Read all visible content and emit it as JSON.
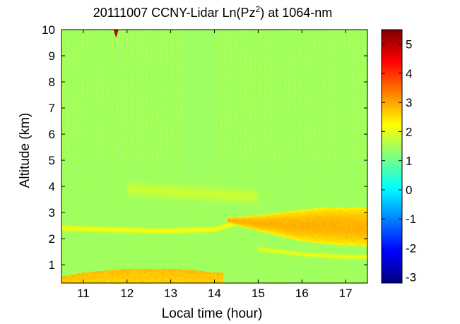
{
  "chart_data": {
    "type": "heatmap",
    "title": {
      "prefix": "20111007 CCNY-Lidar Ln(Pz",
      "superscript": "2",
      "suffix": ") at 1064-nm"
    },
    "xlabel": "Local time (hour)",
    "ylabel": "Altitude (km)",
    "xlim": [
      10.5,
      17.5
    ],
    "ylim": [
      0.3,
      10
    ],
    "x_ticks": [
      "11",
      "12",
      "13",
      "14",
      "15",
      "16",
      "17"
    ],
    "x_tick_values": [
      11,
      12,
      13,
      14,
      15,
      16,
      17
    ],
    "y_ticks": [
      "1",
      "2",
      "3",
      "4",
      "5",
      "6",
      "7",
      "8",
      "9",
      "10"
    ],
    "y_tick_values": [
      1,
      2,
      3,
      4,
      5,
      6,
      7,
      8,
      9,
      10
    ],
    "colorbar": {
      "colormap": "jet",
      "clim": [
        -3.2,
        5.5
      ],
      "ticks": [
        "-3",
        "-2",
        "-1",
        "0",
        "1",
        "2",
        "3",
        "4",
        "5"
      ],
      "tick_values": [
        -3,
        -2,
        -1,
        0,
        1,
        2,
        3,
        4,
        5
      ]
    },
    "background_value": 1.4,
    "features": [
      {
        "name": "aerosol layer (rising)",
        "t": [
          10.5,
          11.5,
          12.5,
          13.0,
          14.0,
          14.5,
          15.5,
          16.5,
          17.5
        ],
        "z": [
          2.4,
          2.35,
          2.3,
          2.3,
          2.35,
          2.6,
          2.6,
          2.5,
          2.3
        ],
        "value": 2.3
      },
      {
        "name": "thick plume",
        "t": [
          14.3,
          15.0,
          15.5,
          16.0,
          16.5,
          17.0,
          17.5
        ],
        "z_bottom": [
          2.6,
          2.3,
          2.1,
          1.9,
          1.8,
          1.75,
          1.7
        ],
        "z_top": [
          2.8,
          2.9,
          3.0,
          3.1,
          3.2,
          3.2,
          3.2
        ],
        "value": 2.9
      },
      {
        "name": "lower plume",
        "t": [
          15.0,
          16.0,
          17.0,
          17.5
        ],
        "z": [
          1.6,
          1.4,
          1.3,
          1.3
        ],
        "value": 2.1
      },
      {
        "name": "boundary layer near surface",
        "t": [
          10.5,
          11.0,
          12.0,
          13.0,
          13.5,
          14.0
        ],
        "z_top": [
          0.55,
          0.7,
          0.85,
          0.85,
          0.8,
          0.7
        ],
        "value": 2.8
      },
      {
        "name": "elevated layer",
        "t": [
          12.0,
          13.0,
          14.0,
          15.0
        ],
        "z": [
          3.9,
          3.8,
          3.7,
          3.6
        ],
        "value": 1.8
      },
      {
        "name": "upper signal near 11.8 h",
        "t": [
          11.7,
          11.8
        ],
        "z": [
          9.7,
          10.0
        ],
        "value": 5.0
      }
    ]
  }
}
